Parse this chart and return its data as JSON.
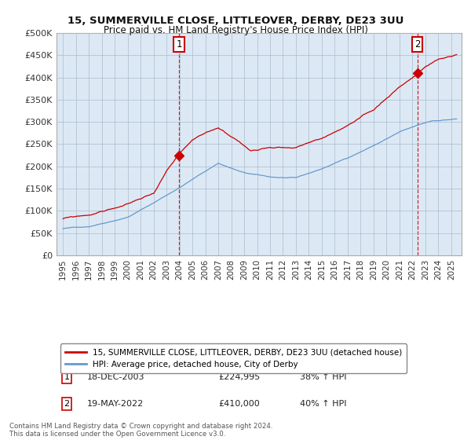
{
  "title1": "15, SUMMERVILLE CLOSE, LITTLEOVER, DERBY, DE23 3UU",
  "title2": "Price paid vs. HM Land Registry's House Price Index (HPI)",
  "legend1": "15, SUMMERVILLE CLOSE, LITTLEOVER, DERBY, DE23 3UU (detached house)",
  "legend2": "HPI: Average price, detached house, City of Derby",
  "sale1_label": "1",
  "sale1_date": "18-DEC-2003",
  "sale1_price": "£224,995",
  "sale1_hpi": "38% ↑ HPI",
  "sale2_label": "2",
  "sale2_date": "19-MAY-2022",
  "sale2_price": "£410,000",
  "sale2_hpi": "40% ↑ HPI",
  "footnote": "Contains HM Land Registry data © Crown copyright and database right 2024.\nThis data is licensed under the Open Government Licence v3.0.",
  "red_color": "#cc0000",
  "blue_color": "#6699cc",
  "bg_color": "#dce9f5",
  "sale1_x": 2003.96,
  "sale1_y": 224995,
  "sale2_x": 2022.38,
  "sale2_y": 410000,
  "ylim": [
    0,
    500000
  ],
  "xlim_start": 1994.5,
  "xlim_end": 2025.8,
  "grid_color": "#aabbcc"
}
